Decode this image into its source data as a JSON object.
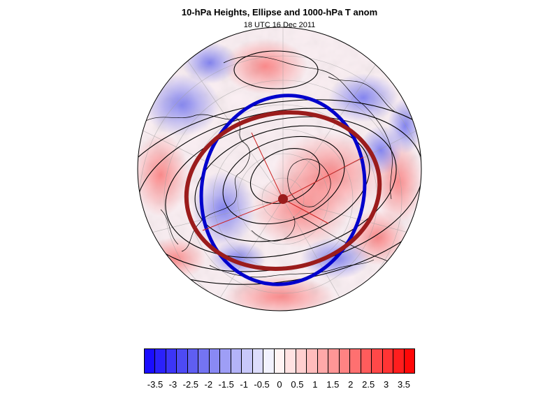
{
  "title": "10-hPa Heights, Ellipse and 1000-hPa T anom",
  "subtitle": "18 UTC 16 Dec 2011",
  "colorbar": {
    "colors": [
      "#1a0dff",
      "#2b21fb",
      "#3c35f7",
      "#4d4af4",
      "#5f5ef2",
      "#7474f2",
      "#8989f4",
      "#9e9ef6",
      "#b3b3f8",
      "#c8c8fa",
      "#ddddfc",
      "#f2f2fe",
      "#fff4f4",
      "#ffe2e2",
      "#ffcfcf",
      "#ffbcbc",
      "#ffa9a9",
      "#ff9696",
      "#ff8383",
      "#ff7070",
      "#ff5c5c",
      "#ff4848",
      "#ff3434",
      "#ff1e1e",
      "#ff0808"
    ],
    "labels": [
      "-3.5",
      "-3",
      "-2.5",
      "-2",
      "-1.5",
      "-1",
      "-0.5",
      "0",
      "0.5",
      "1",
      "1.5",
      "2",
      "2.5",
      "3",
      "3.5"
    ]
  },
  "map": {
    "ellipse_outer_color": "#9b1c1c",
    "ellipse_inner_color": "#0000cc",
    "contour_color": "#000000",
    "axis_line_color": "#cc2222",
    "center_marker_color": "#9b1c1c"
  }
}
